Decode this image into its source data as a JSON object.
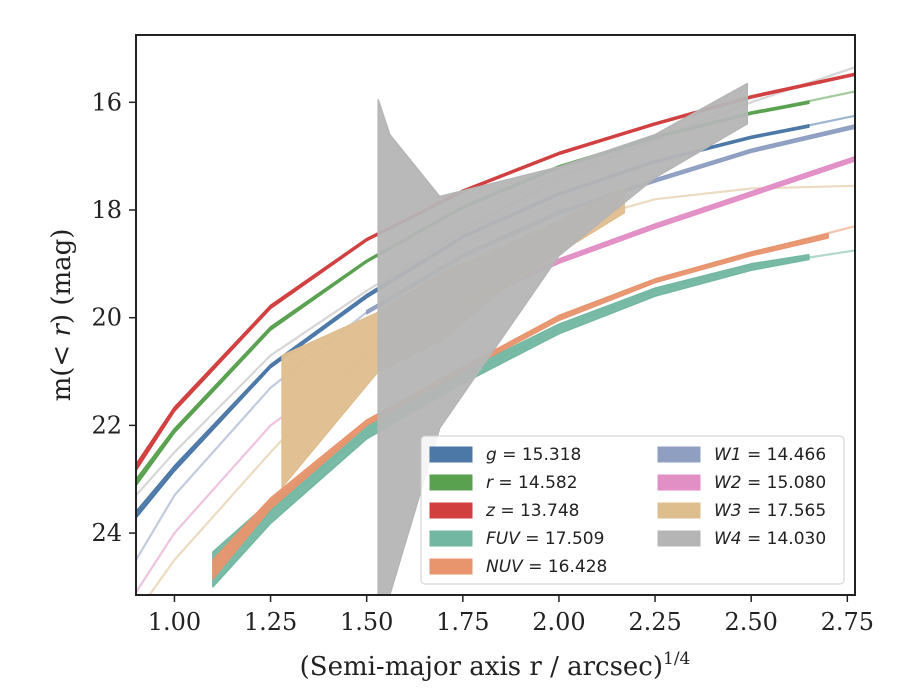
{
  "chart_data": {
    "type": "line",
    "xlabel": "(Semi-major axis r / arcsec)",
    "xlabel_sup": "1/4",
    "ylabel_parts": [
      "m(",
      "< r",
      ") (mag)"
    ],
    "xlim": [
      0.9,
      2.77
    ],
    "ylim": [
      25.15,
      14.75
    ],
    "y_inverted": true,
    "xticks": [
      1.0,
      1.25,
      1.5,
      1.75,
      2.0,
      2.25,
      2.5,
      2.75
    ],
    "xtick_labels": [
      "1.00",
      "1.25",
      "1.50",
      "1.75",
      "2.00",
      "2.25",
      "2.50",
      "2.75"
    ],
    "yticks": [
      16,
      18,
      20,
      22,
      24
    ],
    "ytick_labels": [
      "16",
      "18",
      "20",
      "22",
      "24"
    ],
    "grid": false,
    "legend_placement": "lower-right",
    "series": [
      {
        "name": "g",
        "value": "15.318",
        "color": "#4c78a8",
        "model_x": [
          0.9,
          1.0,
          1.25,
          1.5,
          1.75,
          2.0,
          2.25,
          2.5,
          2.77
        ],
        "model_y": [
          23.7,
          22.8,
          20.9,
          19.6,
          18.5,
          17.7,
          17.1,
          16.65,
          16.25
        ],
        "band_x": [
          0.9,
          1.0,
          1.25,
          1.5,
          1.75,
          2.0,
          2.25,
          2.5,
          2.65
        ],
        "band_upper": [
          23.6,
          22.75,
          20.87,
          19.57,
          18.48,
          17.68,
          17.08,
          16.63,
          16.42
        ],
        "band_lower": [
          23.72,
          22.85,
          20.93,
          19.63,
          18.52,
          17.72,
          17.12,
          16.67,
          16.46
        ]
      },
      {
        "name": "r",
        "value": "14.582",
        "color": "#59a14f",
        "model_x": [
          0.9,
          1.0,
          1.25,
          1.5,
          1.75,
          2.0,
          2.25,
          2.5,
          2.77
        ],
        "model_y": [
          23.1,
          22.1,
          20.2,
          18.95,
          17.95,
          17.2,
          16.65,
          16.2,
          15.8
        ],
        "band_x": [
          0.9,
          1.0,
          1.25,
          1.5,
          1.75,
          2.0,
          2.25,
          2.5,
          2.65
        ],
        "band_upper": [
          23.0,
          22.06,
          20.17,
          18.93,
          17.93,
          17.18,
          16.63,
          16.18,
          15.98
        ],
        "band_lower": [
          23.12,
          22.14,
          20.23,
          18.97,
          17.97,
          17.22,
          16.67,
          16.22,
          16.02
        ]
      },
      {
        "name": "z",
        "value": "13.748",
        "color": "#d13f3f",
        "model_x": [
          0.9,
          1.0,
          1.25,
          1.5,
          1.75,
          2.0,
          2.25,
          2.5,
          2.77
        ],
        "model_y": [
          22.8,
          21.7,
          19.8,
          18.55,
          17.65,
          16.95,
          16.4,
          15.9,
          15.48
        ],
        "band_x": [
          0.9,
          1.0,
          1.25,
          1.5,
          1.75,
          2.0,
          2.25,
          2.5,
          2.77
        ],
        "band_upper": [
          22.72,
          21.66,
          19.77,
          18.53,
          17.63,
          16.93,
          16.38,
          15.88,
          15.46
        ],
        "band_lower": [
          22.84,
          21.74,
          19.83,
          18.57,
          17.67,
          16.97,
          16.42,
          15.92,
          15.5
        ]
      },
      {
        "name": "FUV",
        "value": "17.509",
        "color": "#72b7a1",
        "model_x": [
          1.1,
          1.25,
          1.5,
          1.75,
          2.0,
          2.25,
          2.5,
          2.77
        ],
        "model_y": [
          24.8,
          23.6,
          22.1,
          21.1,
          20.2,
          19.5,
          19.05,
          18.75
        ],
        "band_x": [
          1.1,
          1.25,
          1.5,
          1.75,
          2.0,
          2.25,
          2.5,
          2.65
        ],
        "band_upper": [
          24.35,
          23.4,
          22.0,
          21.0,
          20.12,
          19.45,
          19.0,
          18.83
        ],
        "band_lower": [
          25.0,
          23.82,
          22.25,
          21.22,
          20.3,
          19.6,
          19.12,
          18.92
        ]
      },
      {
        "name": "NUV",
        "value": "16.428",
        "color": "#e8956e",
        "model_x": [
          1.1,
          1.25,
          1.5,
          1.75,
          2.0,
          2.25,
          2.5,
          2.77
        ],
        "model_y": [
          24.6,
          23.4,
          21.95,
          20.95,
          20.0,
          19.3,
          18.8,
          18.3
        ],
        "band_x": [
          1.1,
          1.25,
          1.5,
          1.75,
          2.0,
          2.25,
          2.5,
          2.7
        ],
        "band_upper": [
          24.5,
          23.35,
          21.9,
          20.92,
          19.96,
          19.28,
          18.78,
          18.44
        ],
        "band_lower": [
          24.85,
          23.55,
          22.0,
          21.0,
          20.05,
          19.35,
          18.85,
          18.52
        ]
      },
      {
        "name": "W1",
        "value": "14.466",
        "color": "#8f9fc2",
        "model_x": [
          0.9,
          1.0,
          1.25,
          1.5,
          1.75,
          2.0,
          2.25,
          2.5,
          2.77
        ],
        "model_y": [
          24.5,
          23.3,
          21.3,
          19.9,
          18.85,
          18.05,
          17.45,
          16.9,
          16.45
        ],
        "band_x": [
          1.5,
          1.75,
          2.0,
          2.25,
          2.5,
          2.77
        ],
        "band_upper": [
          19.87,
          18.82,
          18.02,
          17.42,
          16.87,
          16.42
        ],
        "band_lower": [
          19.93,
          18.88,
          18.08,
          17.48,
          16.93,
          16.48
        ]
      },
      {
        "name": "W2",
        "value": "15.080",
        "color": "#e28fc6",
        "model_x": [
          0.9,
          1.0,
          1.25,
          1.5,
          1.75,
          2.0,
          2.25,
          2.5,
          2.77
        ],
        "model_y": [
          25.1,
          24.0,
          22.0,
          20.7,
          19.75,
          18.95,
          18.3,
          17.7,
          17.05
        ],
        "band_x": [
          1.75,
          2.0,
          2.25,
          2.5,
          2.77
        ],
        "band_upper": [
          19.71,
          18.91,
          18.26,
          17.66,
          17.01
        ],
        "band_lower": [
          19.79,
          18.99,
          18.34,
          17.74,
          17.09
        ]
      },
      {
        "name": "W3",
        "value": "17.565",
        "color": "#dfbe8e",
        "model_x": [
          0.9,
          1.0,
          1.25,
          1.5,
          1.75,
          2.0,
          2.25,
          2.5,
          2.77
        ],
        "model_y": [
          25.5,
          24.5,
          22.5,
          20.6,
          19.3,
          18.3,
          17.8,
          17.6,
          17.55
        ],
        "band_x": [
          1.28,
          1.53,
          1.7,
          1.85,
          2.0,
          2.17
        ],
        "band_upper": [
          20.7,
          19.9,
          19.15,
          18.7,
          18.2,
          17.6
        ],
        "band_lower": [
          23.15,
          21.0,
          20.4,
          19.5,
          18.8,
          18.05
        ]
      },
      {
        "name": "W4",
        "value": "14.030",
        "color": "#b5b5b5",
        "model_x": [
          0.9,
          1.0,
          1.25,
          1.5,
          1.75,
          2.0,
          2.25,
          2.5,
          2.77
        ],
        "model_y": [
          23.3,
          22.5,
          20.7,
          19.5,
          18.4,
          17.4,
          16.7,
          16.0,
          15.35
        ],
        "band_x": [
          1.53,
          1.56,
          1.69,
          2.0,
          2.25,
          2.49
        ],
        "band_upper": [
          15.95,
          16.6,
          17.75,
          17.2,
          16.6,
          15.65
        ],
        "band_lower": [
          25.15,
          25.15,
          22.05,
          18.85,
          17.4,
          16.4
        ]
      }
    ]
  }
}
